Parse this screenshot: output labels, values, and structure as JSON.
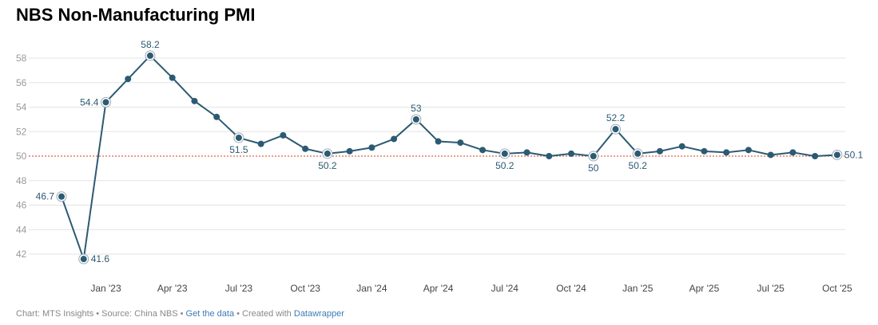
{
  "chart_data": {
    "type": "line",
    "title": "NBS Non-Manufacturing PMI",
    "xlabel": "",
    "ylabel": "",
    "ylim": [
      40,
      59
    ],
    "yticks": [
      42,
      44,
      46,
      48,
      50,
      52,
      54,
      56,
      58
    ],
    "x": [
      "Nov '22",
      "Dec '22",
      "Jan '23",
      "Feb '23",
      "Mar '23",
      "Apr '23",
      "May '23",
      "Jun '23",
      "Jul '23",
      "Aug '23",
      "Sep '23",
      "Oct '23",
      "Nov '23",
      "Dec '23",
      "Jan '24",
      "Feb '24",
      "Mar '24",
      "Apr '24",
      "May '24",
      "Jun '24",
      "Jul '24",
      "Aug '24",
      "Sep '24",
      "Oct '24",
      "Nov '24",
      "Dec '24",
      "Jan '25",
      "Feb '25",
      "Mar '25",
      "Apr '25",
      "May '25",
      "Jun '25",
      "Jul '25",
      "Aug '25",
      "Sep '25",
      "Oct '25"
    ],
    "xticks": [
      {
        "i": 2,
        "label": "Jan '23"
      },
      {
        "i": 5,
        "label": "Apr '23"
      },
      {
        "i": 8,
        "label": "Jul '23"
      },
      {
        "i": 11,
        "label": "Oct '23"
      },
      {
        "i": 14,
        "label": "Jan '24"
      },
      {
        "i": 17,
        "label": "Apr '24"
      },
      {
        "i": 20,
        "label": "Jul '24"
      },
      {
        "i": 23,
        "label": "Oct '24"
      },
      {
        "i": 26,
        "label": "Jan '25"
      },
      {
        "i": 29,
        "label": "Apr '25"
      },
      {
        "i": 32,
        "label": "Jul '25"
      },
      {
        "i": 35,
        "label": "Oct '25"
      }
    ],
    "series": [
      {
        "name": "Non-Manufacturing PMI",
        "color": "#2c5a73",
        "values": [
          46.7,
          41.6,
          54.4,
          56.3,
          58.2,
          56.4,
          54.5,
          53.2,
          51.5,
          51.0,
          51.7,
          50.6,
          50.2,
          50.4,
          50.7,
          51.4,
          53.0,
          51.2,
          51.1,
          50.5,
          50.2,
          50.3,
          50.0,
          50.2,
          50.0,
          52.2,
          50.2,
          50.4,
          50.8,
          50.4,
          50.3,
          50.5,
          50.1,
          50.3,
          50.0,
          50.1
        ]
      }
    ],
    "reference_line": {
      "value": 50,
      "color": "#e0614a"
    },
    "annotations": [
      {
        "i": 0,
        "text": "46.7",
        "pos": "left"
      },
      {
        "i": 1,
        "text": "41.6",
        "pos": "right"
      },
      {
        "i": 2,
        "text": "54.4",
        "pos": "left"
      },
      {
        "i": 4,
        "text": "58.2",
        "pos": "top"
      },
      {
        "i": 8,
        "text": "51.5",
        "pos": "bottom"
      },
      {
        "i": 12,
        "text": "50.2",
        "pos": "bottom"
      },
      {
        "i": 16,
        "text": "53",
        "pos": "top"
      },
      {
        "i": 20,
        "text": "50.2",
        "pos": "bottom"
      },
      {
        "i": 24,
        "text": "50",
        "pos": "bottom"
      },
      {
        "i": 25,
        "text": "52.2",
        "pos": "top"
      },
      {
        "i": 26,
        "text": "50.2",
        "pos": "bottom"
      },
      {
        "i": 35,
        "text": "50.1",
        "pos": "right"
      }
    ],
    "grid": true
  },
  "footer": {
    "chart_by": "Chart: MTS Insights",
    "source": "Source: China NBS",
    "get_data": "Get the data",
    "created": "Created with",
    "datawrapper": "Datawrapper",
    "sep": " • "
  }
}
